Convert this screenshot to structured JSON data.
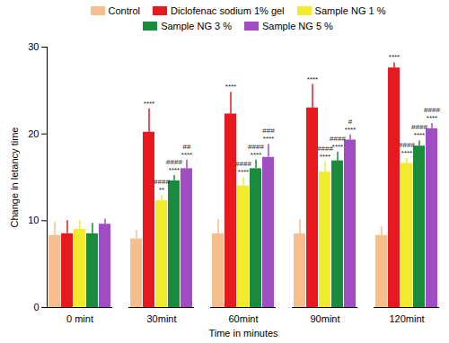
{
  "chart_data": {
    "type": "bar",
    "x_label": "Time in minutes",
    "y_label": "Change in letancy time",
    "categories": [
      "0 mint",
      "30mint",
      "60mint",
      "90mint",
      "120mint"
    ],
    "ylim": [
      0,
      30
    ],
    "yticks": [
      0,
      10,
      20,
      30
    ],
    "grid": false,
    "legend": "top",
    "series": [
      {
        "name": "Control",
        "color": "#F5BE8C",
        "values": [
          8.3,
          7.9,
          8.5,
          8.5,
          8.3
        ],
        "error": [
          1.5,
          1.0,
          1.6,
          1.6,
          1.0
        ],
        "annotations": [
          null,
          null,
          null,
          null,
          null
        ]
      },
      {
        "name": "Diclofenac sodium 1% gel",
        "color": "#E8191E",
        "values": [
          8.5,
          20.2,
          22.3,
          23.0,
          27.6
        ],
        "error": [
          1.5,
          2.7,
          2.5,
          2.7,
          0.6
        ],
        "annotations": [
          null,
          [
            "****"
          ],
          [
            "****"
          ],
          [
            "****"
          ],
          [
            "****"
          ]
        ]
      },
      {
        "name": "Sample NG 1 %",
        "color": "#F2EA2C",
        "values": [
          9.0,
          12.3,
          14.0,
          15.6,
          16.6
        ],
        "error": [
          1.0,
          0.6,
          1.0,
          1.2,
          0.6
        ],
        "annotations": [
          null,
          [
            "**",
            "####"
          ],
          [
            "****",
            "####"
          ],
          [
            "****",
            "####"
          ],
          [
            "****",
            "####"
          ]
        ]
      },
      {
        "name": "Sample NG 3 %",
        "color": "#1A8A3C",
        "values": [
          8.5,
          14.6,
          16.0,
          16.9,
          18.6
        ],
        "error": [
          1.2,
          0.6,
          1.0,
          1.0,
          0.6
        ],
        "annotations": [
          null,
          [
            "****",
            "####"
          ],
          [
            "****",
            "####"
          ],
          [
            "****",
            "####"
          ],
          [
            "****",
            "####"
          ]
        ]
      },
      {
        "name": "Sample NG 5 %",
        "color": "#A04CC2",
        "values": [
          9.6,
          16.0,
          17.3,
          19.3,
          20.6
        ],
        "error": [
          0.6,
          1.0,
          1.5,
          0.6,
          0.6
        ],
        "annotations": [
          null,
          [
            "****",
            "##"
          ],
          [
            "****",
            "###"
          ],
          [
            "****",
            "#"
          ],
          [
            "****",
            "####"
          ]
        ]
      }
    ]
  }
}
